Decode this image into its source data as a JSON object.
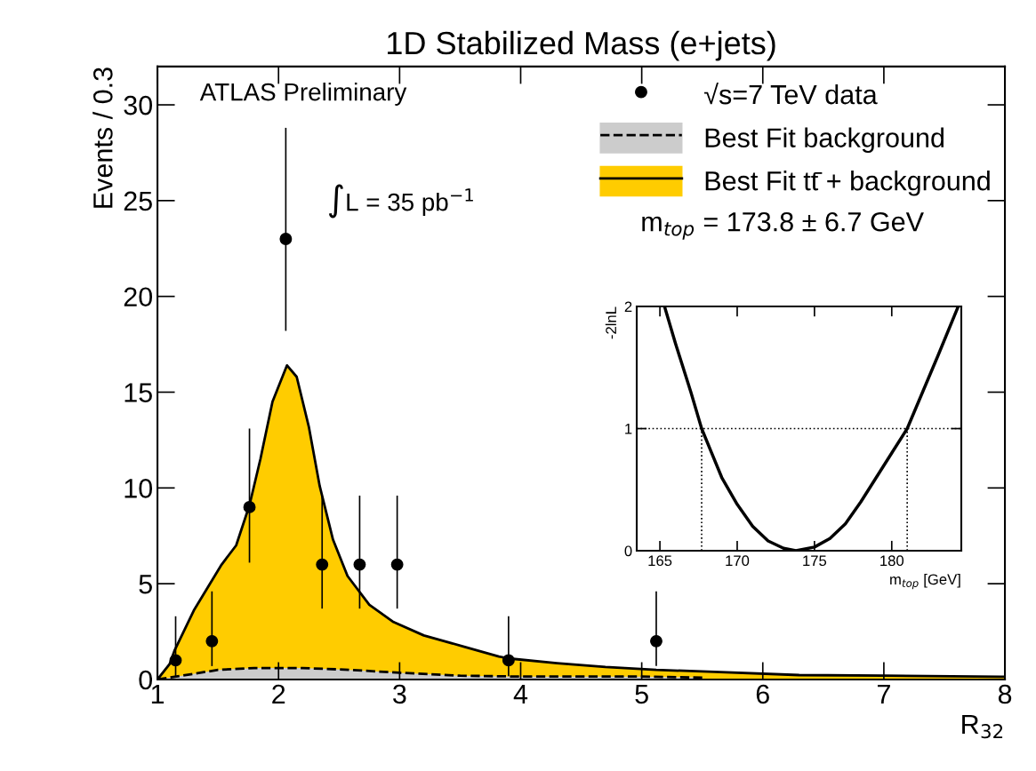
{
  "chart_data": [
    {
      "type": "area",
      "title": "1D Stabilized Mass (e+jets)",
      "xlabel": "R$_{32}$",
      "ylabel": "Events / 0.3",
      "xlim": [
        1,
        8
      ],
      "xticks": [
        1,
        2,
        3,
        4,
        5,
        6,
        7,
        8
      ],
      "ylim": [
        0,
        32
      ],
      "yticks": [
        0,
        5,
        10,
        15,
        20,
        25,
        30
      ],
      "legend": "top right",
      "grid": false,
      "annotations": [
        "ATLAS Preliminary",
        "∫L = 35 pb$^{−1}$",
        "m$_{top}$ = 173.8 ± 6.7 GeV"
      ],
      "series": [
        {
          "name": "Best Fit tt̄ + background",
          "type": "area",
          "color": "#ffcc00",
          "line_style": "solid",
          "x": [
            1.0,
            1.1,
            1.14,
            1.3,
            1.53,
            1.65,
            1.76,
            1.85,
            1.95,
            2.07,
            2.15,
            2.25,
            2.34,
            2.45,
            2.57,
            2.75,
            2.95,
            3.2,
            3.54,
            3.82,
            3.9,
            4.3,
            4.7,
            5.12,
            5.6,
            6.3,
            7.0,
            7.96,
            8.0
          ],
          "values": [
            0,
            0.8,
            1.5,
            3.6,
            6.0,
            7.0,
            9.1,
            11.5,
            14.5,
            16.4,
            15.8,
            13.2,
            10.1,
            7.3,
            5.4,
            3.9,
            3.0,
            2.3,
            1.7,
            1.2,
            1.1,
            0.85,
            0.65,
            0.5,
            0.4,
            0.23,
            0.2,
            0.14,
            0.14
          ]
        },
        {
          "name": "Best Fit background",
          "type": "area",
          "color": "#cccccc",
          "line_style": "dashed",
          "x": [
            1.0,
            1.2,
            1.5,
            1.8,
            2.2,
            2.6,
            3.0,
            3.5,
            4.0,
            5.0,
            5.5
          ],
          "values": [
            0,
            0.2,
            0.5,
            0.6,
            0.6,
            0.5,
            0.35,
            0.2,
            0.15,
            0.15,
            0.1
          ]
        },
        {
          "name": "√s=7 TeV data",
          "type": "scatter",
          "color": "#000000",
          "marker": "circle",
          "x": [
            1.15,
            1.45,
            1.76,
            2.06,
            2.36,
            2.67,
            2.98,
            3.9,
            5.12
          ],
          "values": [
            1,
            2,
            9,
            23,
            6,
            6,
            6,
            1,
            2
          ],
          "errors": [
            [
              0.17,
              3.3
            ],
            [
              0.7,
              4.6
            ],
            [
              6.1,
              13.1
            ],
            [
              18.2,
              28.8
            ],
            [
              3.7,
              9.6
            ],
            [
              3.7,
              9.6
            ],
            [
              3.7,
              9.6
            ],
            [
              0.17,
              3.3
            ],
            [
              0.7,
              4.6
            ]
          ]
        }
      ]
    },
    {
      "type": "line",
      "xlabel": "m$_{top}$ [GeV]",
      "ylabel": "-2lnL",
      "xlim": [
        163.5,
        184.5
      ],
      "xticks": [
        165,
        170,
        175,
        180
      ],
      "ylim": [
        0,
        2
      ],
      "yticks": [
        0,
        1,
        2
      ],
      "grid": false,
      "ref_lines": [
        {
          "axis": "y",
          "value": 1,
          "line_style": "dotted"
        },
        {
          "axis": "x",
          "value": 167.7,
          "line_style": "dotted"
        },
        {
          "axis": "x",
          "value": 181.0,
          "line_style": "dotted"
        }
      ],
      "series": [
        {
          "color": "#000000",
          "x": [
            165.3,
            166,
            167,
            167.7,
            169,
            170,
            171,
            172,
            173,
            173.8,
            175,
            176,
            177,
            178,
            179,
            180,
            181,
            182,
            183,
            184.3
          ],
          "values": [
            2,
            1.7,
            1.3,
            1.0,
            0.6,
            0.38,
            0.2,
            0.08,
            0.02,
            0,
            0.03,
            0.1,
            0.22,
            0.4,
            0.6,
            0.8,
            1.0,
            1.3,
            1.6,
            2
          ]
        }
      ]
    }
  ]
}
